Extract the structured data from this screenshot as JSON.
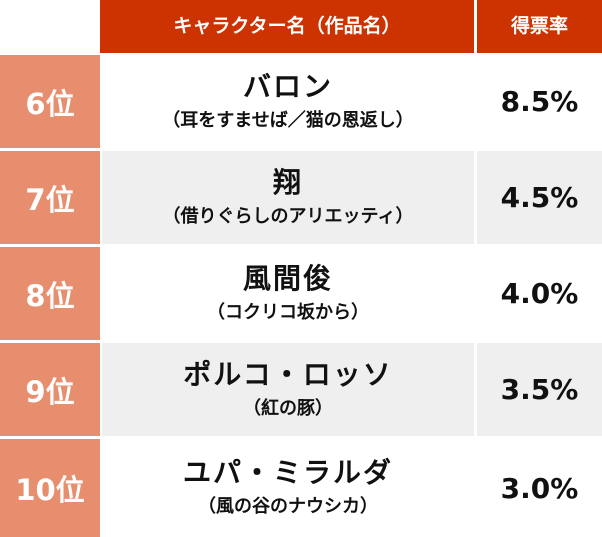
{
  "header": {
    "name_col": "キャラクター名（作品名）",
    "rate_col": "得票率"
  },
  "rows": [
    {
      "rank": "6位",
      "character": "バロン",
      "work": "（耳をすませば／猫の恩返し）",
      "rate": "8.5%"
    },
    {
      "rank": "7位",
      "character": "翔",
      "work": "（借りぐらしのアリエッティ）",
      "rate": "4.5%"
    },
    {
      "rank": "8位",
      "character": "風間俊",
      "work": "（コクリコ坂から）",
      "rate": "4.0%"
    },
    {
      "rank": "9位",
      "character": "ポルコ・ロッソ",
      "work": "（紅の豚）",
      "rate": "3.5%"
    },
    {
      "rank": "10位",
      "character": "ユパ・ミラルダ",
      "work": "（風の谷のナウシカ）",
      "rate": "3.0%"
    }
  ],
  "colors": {
    "header_bg": "#cc3300",
    "rank_bg": "#e78e6f",
    "row_alt_bg": "#efefef"
  }
}
